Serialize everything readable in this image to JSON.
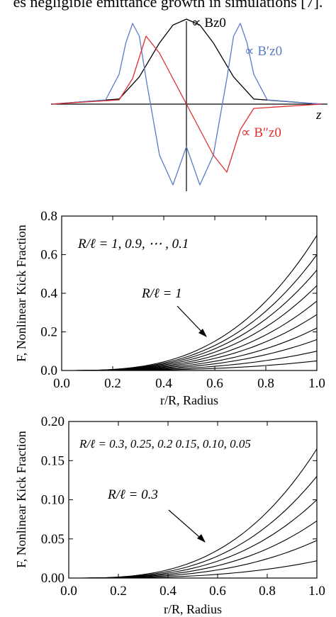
{
  "header_text": "es negligible emittance growth in simulations [7].",
  "chart_data": [
    {
      "type": "line",
      "xlabel": "z",
      "series": [
        {
          "name": "∝ Bz0",
          "color": "#000000",
          "x": [
            -1.0,
            -0.5,
            -0.35,
            -0.2,
            -0.1,
            0.0,
            0.1,
            0.2,
            0.35,
            0.5,
            1.0
          ],
          "values": [
            0.0,
            0.06,
            0.32,
            0.72,
            0.93,
            1.0,
            0.93,
            0.72,
            0.32,
            0.06,
            0.0
          ]
        },
        {
          "name": "∝ B′z0",
          "color": "#5b7bc6",
          "x": [
            -1.0,
            -0.6,
            -0.5,
            -0.45,
            -0.4,
            -0.35,
            -0.3,
            -0.2,
            -0.1,
            0.0,
            0.1,
            0.2,
            0.3,
            0.35,
            0.4,
            0.45,
            0.5,
            0.6,
            1.0
          ],
          "values": [
            0.0,
            0.05,
            0.35,
            0.72,
            0.95,
            0.8,
            0.3,
            -0.6,
            -0.95,
            -0.5,
            -0.95,
            -0.6,
            0.3,
            0.8,
            0.95,
            0.72,
            0.35,
            0.05,
            0.0
          ]
        },
        {
          "name": "∝ B″z0",
          "color": "#e03030",
          "x": [
            -1.0,
            -0.5,
            -0.4,
            -0.3,
            -0.2,
            -0.1,
            0.0,
            0.1,
            0.2,
            0.3,
            0.4,
            0.5,
            1.0
          ],
          "values": [
            0.0,
            0.05,
            0.3,
            0.8,
            0.6,
            0.3,
            0.0,
            -0.3,
            -0.6,
            -0.8,
            -0.3,
            -0.05,
            0.0
          ]
        }
      ]
    },
    {
      "type": "line",
      "xlabel": "r/R, Radius",
      "ylabel": "F, Nonlinear Kick Fraction",
      "xlim": [
        0.0,
        1.0
      ],
      "ylim": [
        0.0,
        0.8
      ],
      "xticks": [
        "0.0",
        "0.2",
        "0.4",
        "0.6",
        "0.8",
        "1.0"
      ],
      "yticks": [
        "0.0",
        "0.2",
        "0.4",
        "0.6",
        "0.8"
      ],
      "legend_text": "R/ℓ = 1, 0.9, ⋯ , 0.1",
      "annotation": "R/ℓ = 1",
      "end_values": [
        0.7,
        0.6,
        0.52,
        0.44,
        0.36,
        0.29,
        0.22,
        0.16,
        0.1,
        0.05
      ]
    },
    {
      "type": "line",
      "xlabel": "r/R, Radius",
      "ylabel": "F, Nonlinear Kick Fraction",
      "xlim": [
        0.0,
        1.0
      ],
      "ylim": [
        0.0,
        0.2
      ],
      "xticks": [
        "0.0",
        "0.2",
        "0.4",
        "0.6",
        "0.8",
        "1.0"
      ],
      "yticks": [
        "0.00",
        "0.05",
        "0.10",
        "0.15",
        "0.20"
      ],
      "legend_text": "R/ℓ = 0.3, 0.25, 0.2 0.15, 0.10, 0.05",
      "annotation": "R/ℓ = 0.3",
      "end_values": [
        0.165,
        0.13,
        0.1,
        0.073,
        0.048,
        0.022
      ]
    }
  ]
}
